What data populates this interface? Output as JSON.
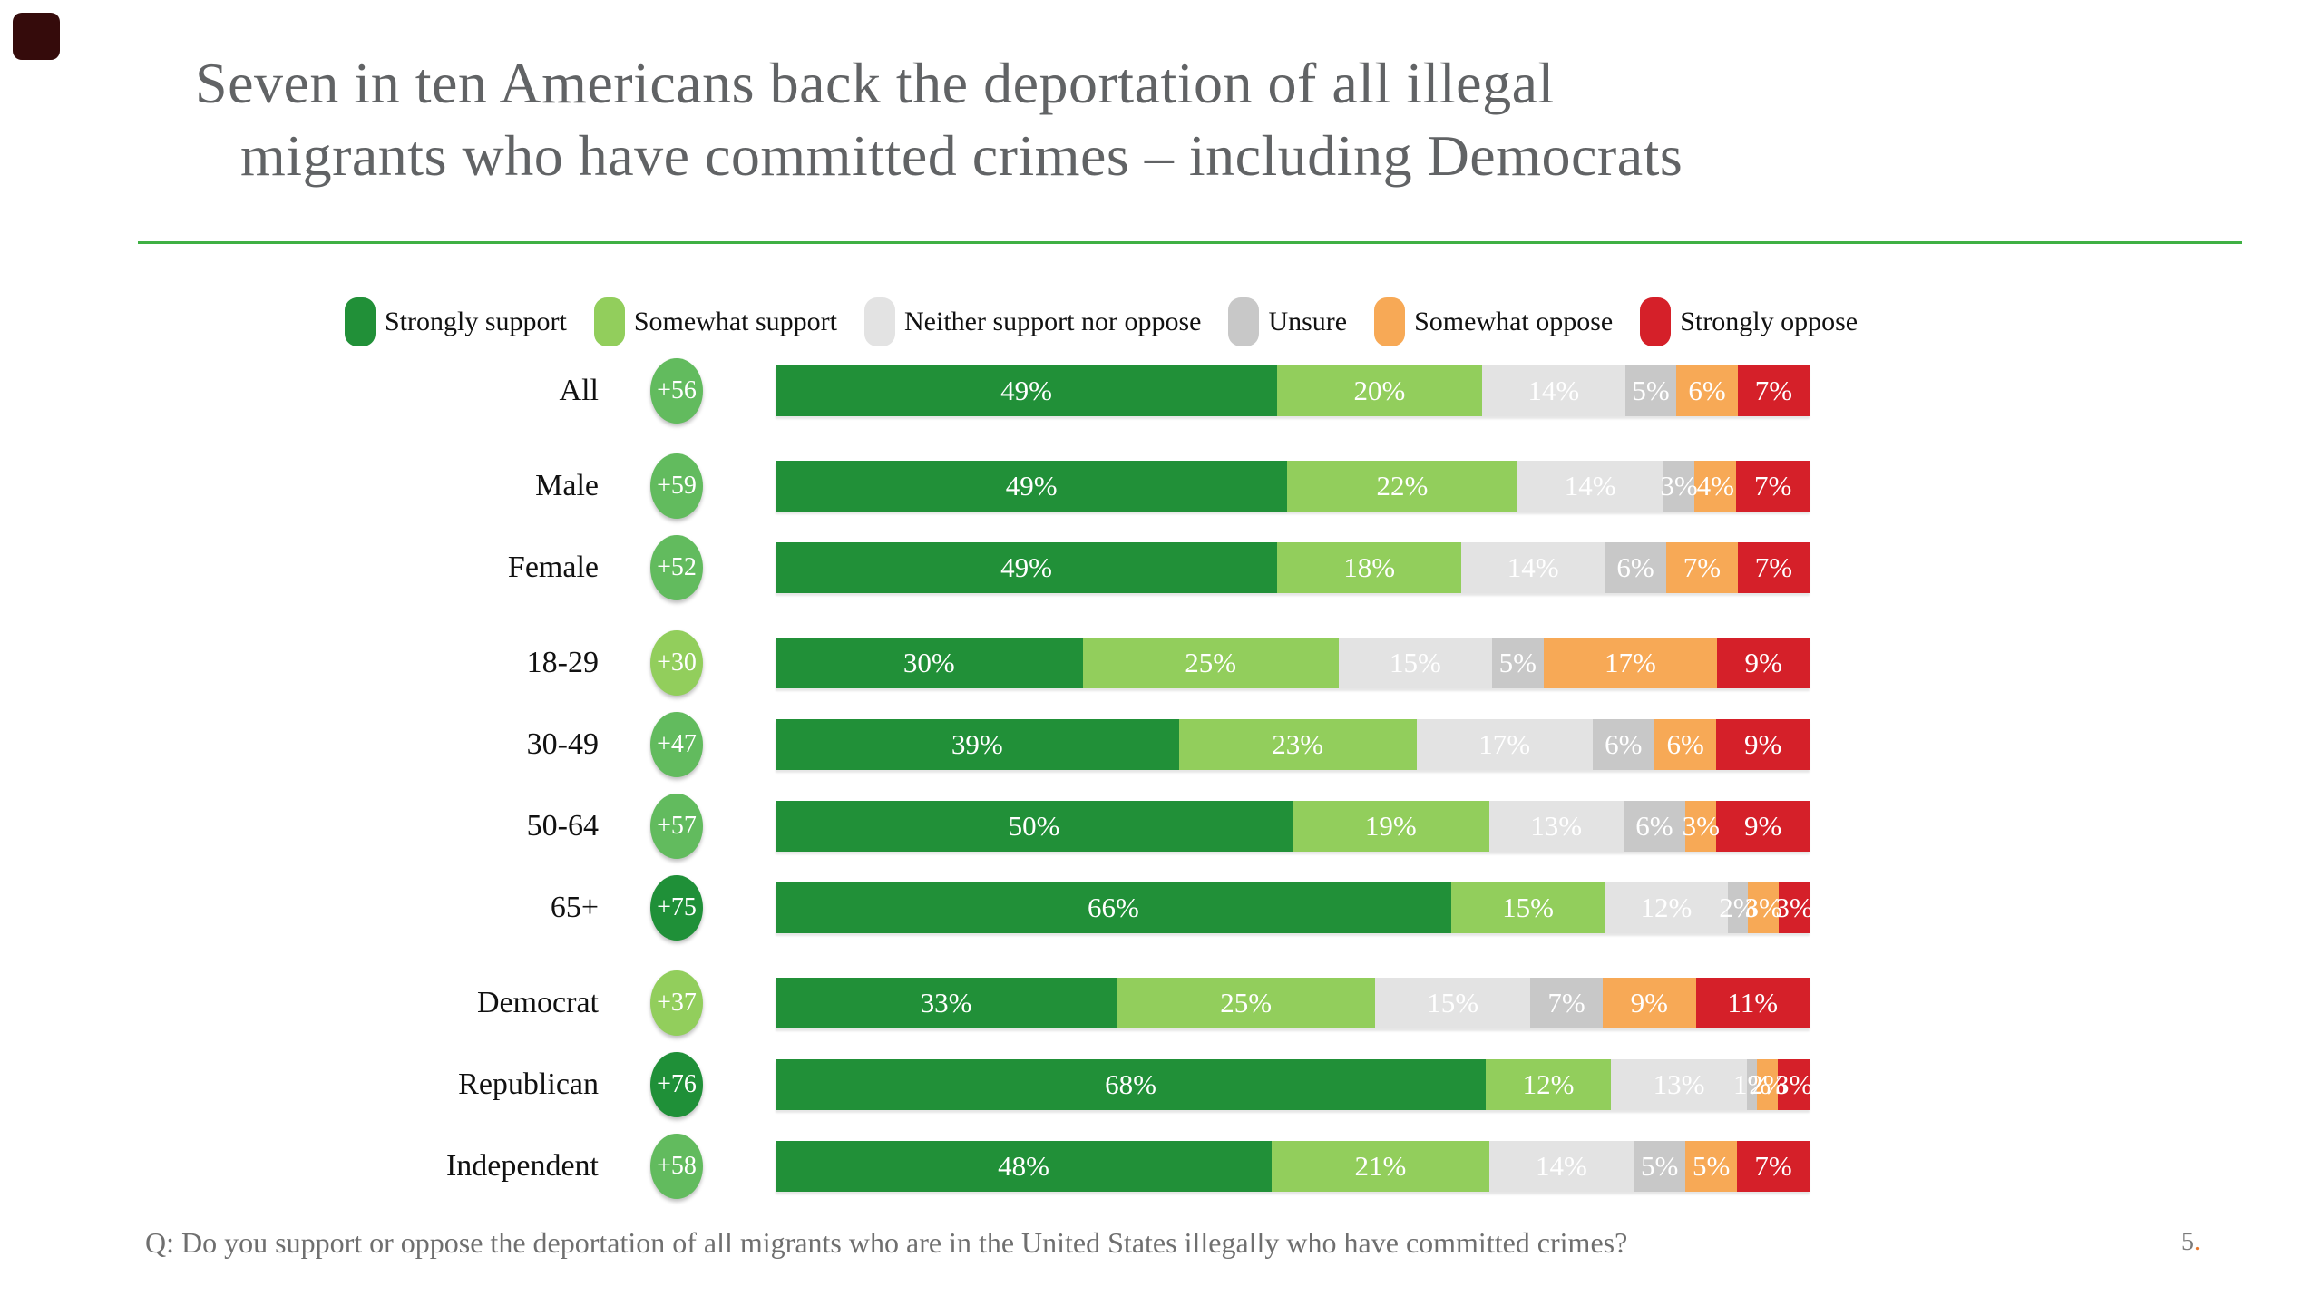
{
  "page": {
    "title_line1": "Seven in ten Americans back the deportation of all illegal",
    "title_line2": "migrants who have committed crimes – including Democrats",
    "footer_question": "Q: Do you support or oppose the deportation of all migrants who are in the United States illegally who have committed crimes?",
    "page_number": "5",
    "page_number_suffix": "."
  },
  "colors": {
    "title_text": "#616365",
    "divider_green": "#3fb044",
    "corner_logo": "#350b0b",
    "badge_dark": "#1f9038",
    "badge_medium": "#62bb5e",
    "badge_light": "#92ce5c",
    "footer_text": "#6f6f6f",
    "page_dot_orange": "#e8762c"
  },
  "chart_data": {
    "type": "bar",
    "subtype": "horizontal-stacked-100pct",
    "unit": "%",
    "title": "Seven in ten Americans back the deportation of all illegal migrants who have committed crimes – including Democrats",
    "legend_position": "top",
    "axes": "none (data labels inside segments)",
    "series_labels": [
      "Strongly support",
      "Somewhat support",
      "Neither support nor oppose",
      "Unsure",
      "Somewhat oppose",
      "Strongly oppose"
    ],
    "series_colors": [
      "#219038",
      "#92ce5c",
      "#e3e3e3",
      "#c8c8c8",
      "#f7a956",
      "#d52029"
    ],
    "net_support_note": "circle badge next to each category shows net support (support minus oppose)",
    "rows": [
      {
        "category": "All",
        "net": "+56",
        "net_color": "medium",
        "values": [
          49,
          20,
          14,
          5,
          6,
          7
        ],
        "group_start": false
      },
      {
        "category": "Male",
        "net": "+59",
        "net_color": "medium",
        "values": [
          49,
          22,
          14,
          3,
          4,
          7
        ],
        "group_start": true
      },
      {
        "category": "Female",
        "net": "+52",
        "net_color": "medium",
        "values": [
          49,
          18,
          14,
          6,
          7,
          7
        ],
        "group_start": false
      },
      {
        "category": "18-29",
        "net": "+30",
        "net_color": "light",
        "values": [
          30,
          25,
          15,
          5,
          17,
          9
        ],
        "group_start": true
      },
      {
        "category": "30-49",
        "net": "+47",
        "net_color": "medium",
        "values": [
          39,
          23,
          17,
          6,
          6,
          9
        ],
        "group_start": false
      },
      {
        "category": "50-64",
        "net": "+57",
        "net_color": "medium",
        "values": [
          50,
          19,
          13,
          6,
          3,
          9
        ],
        "group_start": false
      },
      {
        "category": "65+",
        "net": "+75",
        "net_color": "dark",
        "values": [
          66,
          15,
          12,
          2,
          3,
          3
        ],
        "group_start": false
      },
      {
        "category": "Democrat",
        "net": "+37",
        "net_color": "light",
        "values": [
          33,
          25,
          15,
          7,
          9,
          11
        ],
        "group_start": true
      },
      {
        "category": "Republican",
        "net": "+76",
        "net_color": "dark",
        "values": [
          68,
          12,
          13,
          1,
          2,
          3
        ],
        "group_start": false
      },
      {
        "category": "Independent",
        "net": "+58",
        "net_color": "medium",
        "values": [
          48,
          21,
          14,
          5,
          5,
          7
        ],
        "group_start": false
      }
    ]
  }
}
